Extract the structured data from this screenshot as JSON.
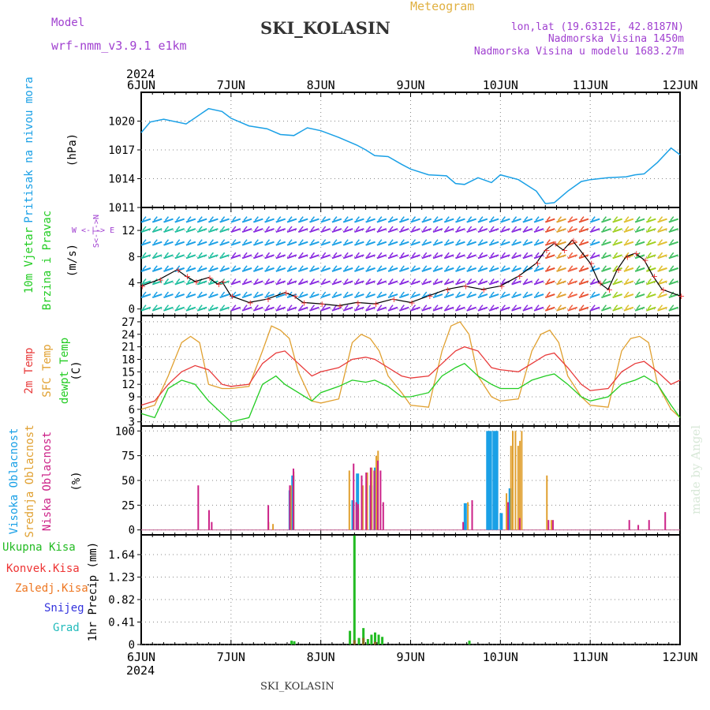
{
  "header": {
    "model_label": "Model",
    "model_name": "wrf-nmm_v3.9.1 e1km",
    "station": "SKI_KOLASIN",
    "product": "Meteogram",
    "lonlat": "lon,lat (19.6312E, 42.8187N)",
    "elevation": "Nadmorska Visina 1450m",
    "model_elevation": "Nadmorska Visina u modelu 1683.27m",
    "year": "2024",
    "footer_station": "SKI_KOLASIN",
    "credit": "made by Angel"
  },
  "colors": {
    "pressure": "#1aa0e6",
    "temp2m": "#e83a3a",
    "sfc": "#e0a030",
    "dew": "#22cc22",
    "wind_speed": "#000000",
    "high_cloud": "#1aa0e6",
    "mid_cloud": "#e0a030",
    "low_cloud": "#cc2288",
    "precip_total": "#22bb22",
    "precip_conv": "#ee3333",
    "precip_frozen": "#ee7722",
    "snow": "#3333dd",
    "hail": "#22bbbb",
    "label_purple": "#a040d0",
    "label_orange": "#e0b040"
  },
  "chart_data": [
    {
      "type": "line",
      "panel": "pressure",
      "ylabel_main": "Pritisak na nivou mora",
      "ylabel_unit": "(hPa)",
      "x_ticks": [
        "6JUN",
        "7JUN",
        "8JUN",
        "9JUN",
        "10JUN",
        "11JUN",
        "12JUN"
      ],
      "ylim": [
        1011,
        1023
      ],
      "yticks": [
        1011,
        1014,
        1017,
        1020
      ],
      "grid": true,
      "series": [
        {
          "x": [
            0,
            0.1,
            0.25,
            0.5,
            0.75,
            0.9,
            1.0,
            1.2,
            1.4,
            1.55,
            1.7,
            1.85,
            2.0,
            2.2,
            2.4,
            2.5,
            2.6,
            2.75,
            2.9,
            3.0,
            3.2,
            3.4,
            3.5,
            3.6,
            3.75,
            3.9,
            4.0,
            4.2,
            4.4,
            4.5,
            4.6,
            4.75,
            4.9,
            5.0,
            5.2,
            5.4,
            5.5,
            5.6,
            5.75,
            5.9,
            6.0
          ],
          "y": [
            1018.8,
            1019.9,
            1020.2,
            1019.7,
            1021.3,
            1021.0,
            1020.3,
            1019.5,
            1019.2,
            1018.6,
            1018.5,
            1019.3,
            1019.0,
            1018.3,
            1017.5,
            1017.0,
            1016.4,
            1016.3,
            1015.5,
            1015.0,
            1014.4,
            1014.3,
            1013.5,
            1013.4,
            1014.1,
            1013.6,
            1014.4,
            1013.9,
            1012.7,
            1011.4,
            1011.5,
            1012.7,
            1013.7,
            1013.9,
            1014.1,
            1014.2,
            1014.4,
            1014.5,
            1015.7,
            1017.2,
            1016.5
          ]
        }
      ]
    },
    {
      "type": "line",
      "panel": "wind",
      "ylabel_main": "10m Vjetar",
      "ylabel_sub": "Brzina i Pravac",
      "ylabel_unit": "(m/s)",
      "direction_legend": "W <-|-> E",
      "direction_legend_ns": "S<-|->N",
      "ylim": [
        -1,
        15.5
      ],
      "yticks": [
        0,
        4,
        8,
        12
      ],
      "grid": true,
      "series": [
        {
          "name": "wind speed",
          "x": [
            0,
            0.2,
            0.4,
            0.5,
            0.6,
            0.75,
            0.85,
            0.9,
            1.0,
            1.2,
            1.4,
            1.6,
            1.7,
            1.8,
            2.0,
            2.2,
            2.4,
            2.6,
            2.8,
            3.0,
            3.2,
            3.4,
            3.6,
            3.8,
            4.0,
            4.2,
            4.4,
            4.5,
            4.6,
            4.7,
            4.8,
            5.0,
            5.1,
            5.2,
            5.3,
            5.4,
            5.5,
            5.6,
            5.7,
            5.8,
            6.0
          ],
          "y": [
            3.5,
            4.5,
            6.0,
            5.0,
            4.2,
            4.8,
            3.8,
            4.2,
            2.0,
            1.0,
            1.5,
            2.5,
            2.0,
            1.0,
            0.8,
            0.5,
            1.0,
            0.8,
            1.5,
            1.0,
            2.0,
            3.0,
            3.5,
            3.0,
            3.5,
            5.0,
            7.0,
            9.0,
            10.0,
            9.0,
            10.5,
            7.0,
            4.0,
            3.0,
            6.0,
            8.0,
            8.5,
            7.5,
            5.0,
            3.0,
            2.0
          ]
        }
      ],
      "barb_bands_y": [
        0,
        2,
        4,
        6,
        8,
        10,
        12,
        13.5
      ]
    },
    {
      "type": "line",
      "panel": "temperature",
      "ylabel_lines": [
        "2m Temp",
        "SFC Temp",
        "dewpt Temp"
      ],
      "ylabel_unit": "(C)",
      "ylim": [
        2,
        28.5
      ],
      "yticks": [
        3,
        6,
        9,
        12,
        15,
        18,
        21,
        24,
        27
      ],
      "grid": true,
      "series": [
        {
          "name": "2m Temp",
          "x": [
            0,
            0.15,
            0.3,
            0.45,
            0.6,
            0.75,
            0.9,
            1.0,
            1.2,
            1.35,
            1.5,
            1.6,
            1.75,
            1.9,
            2.0,
            2.2,
            2.35,
            2.5,
            2.6,
            2.75,
            2.9,
            3.0,
            3.2,
            3.35,
            3.5,
            3.6,
            3.75,
            3.9,
            4.0,
            4.2,
            4.35,
            4.5,
            4.6,
            4.75,
            4.9,
            5.0,
            5.2,
            5.35,
            5.5,
            5.6,
            5.75,
            5.9,
            6.0
          ],
          "y": [
            7.0,
            8.0,
            12.0,
            15.0,
            16.5,
            15.5,
            12.0,
            11.5,
            12.0,
            17.0,
            19.5,
            20.0,
            17.0,
            14.0,
            15.0,
            16.0,
            18.0,
            18.5,
            18.0,
            16.0,
            14.0,
            13.5,
            14.0,
            17.0,
            20.0,
            21.0,
            20.0,
            16.0,
            15.5,
            15.0,
            17.0,
            19.0,
            19.5,
            16.0,
            12.0,
            10.5,
            11.0,
            15.0,
            17.0,
            17.5,
            15.0,
            12.0,
            13.0
          ]
        },
        {
          "name": "SFC Temp",
          "x": [
            0,
            0.15,
            0.3,
            0.45,
            0.55,
            0.65,
            0.75,
            0.9,
            1.0,
            1.2,
            1.35,
            1.45,
            1.55,
            1.65,
            1.75,
            1.9,
            2.0,
            2.2,
            2.35,
            2.45,
            2.55,
            2.65,
            2.75,
            2.9,
            3.0,
            3.2,
            3.35,
            3.45,
            3.55,
            3.65,
            3.75,
            3.9,
            4.0,
            4.2,
            4.35,
            4.45,
            4.55,
            4.65,
            4.75,
            4.9,
            5.0,
            5.2,
            5.35,
            5.45,
            5.55,
            5.65,
            5.75,
            5.9,
            6.0
          ],
          "y": [
            6.0,
            7.0,
            14.0,
            22.0,
            23.5,
            22.0,
            12.0,
            11.0,
            11.0,
            11.5,
            20.0,
            26.0,
            25.0,
            23.0,
            15.0,
            8.0,
            7.5,
            8.5,
            22.0,
            24.0,
            23.0,
            20.0,
            14.0,
            10.0,
            7.0,
            6.5,
            20.0,
            26.0,
            27.0,
            24.0,
            14.0,
            9.0,
            8.0,
            8.5,
            20.0,
            24.0,
            25.0,
            22.0,
            14.0,
            9.0,
            7.0,
            6.5,
            20.0,
            23.0,
            23.5,
            22.0,
            12.0,
            6.0,
            4.0
          ]
        },
        {
          "name": "dewpt Temp",
          "x": [
            0,
            0.15,
            0.3,
            0.45,
            0.6,
            0.75,
            0.9,
            1.0,
            1.2,
            1.35,
            1.5,
            1.6,
            1.75,
            1.9,
            2.0,
            2.2,
            2.35,
            2.5,
            2.6,
            2.75,
            2.9,
            3.0,
            3.2,
            3.35,
            3.5,
            3.6,
            3.75,
            3.9,
            4.0,
            4.2,
            4.35,
            4.5,
            4.6,
            4.75,
            4.9,
            5.0,
            5.2,
            5.35,
            5.5,
            5.6,
            5.75,
            5.9,
            6.0
          ],
          "y": [
            5.0,
            4.0,
            11.0,
            13.0,
            12.0,
            8.0,
            5.0,
            3.0,
            4.0,
            12.0,
            14.0,
            12.0,
            10.0,
            8.0,
            10.0,
            11.5,
            13.0,
            12.5,
            13.0,
            11.5,
            9.0,
            9.0,
            10.0,
            14.0,
            16.0,
            17.0,
            14.0,
            12.0,
            11.0,
            11.0,
            13.0,
            14.0,
            14.5,
            12.0,
            9.0,
            8.0,
            9.0,
            12.0,
            13.0,
            14.0,
            12.0,
            7.0,
            4.0
          ]
        }
      ]
    },
    {
      "type": "bar",
      "panel": "cloud",
      "ylabel_lines": [
        "Visoka Oblacnost",
        "Srednja Oblacnost",
        "Niska Oblacnost"
      ],
      "ylabel_unit": "(%)",
      "ylim": [
        -5,
        105
      ],
      "yticks": [
        0,
        25,
        50,
        75,
        100
      ],
      "grid": true,
      "series": [
        {
          "name": "Visoka Oblacnost",
          "x": [
            1.65,
            1.68,
            2.35,
            2.4,
            2.55,
            2.6,
            3.6,
            3.85,
            3.88,
            3.92,
            3.95,
            4.0,
            4.1
          ],
          "values": [
            40,
            55,
            30,
            57,
            45,
            63,
            27,
            100,
            100,
            100,
            100,
            17,
            42
          ]
        },
        {
          "name": "Srednja Oblacnost",
          "x": [
            1.4,
            1.45,
            1.65,
            1.68,
            2.3,
            2.35,
            2.4,
            2.45,
            2.5,
            2.55,
            2.6,
            2.62,
            3.62,
            4.05,
            4.1,
            4.12,
            4.15,
            4.18,
            4.2,
            4.22,
            4.5,
            4.55
          ],
          "values": [
            8,
            6,
            45,
            59,
            60,
            20,
            22,
            45,
            58,
            63,
            75,
            80,
            28,
            37,
            85,
            100,
            100,
            85,
            90,
            100,
            55,
            10
          ],
          "dim": true
        },
        {
          "name": "Niska Oblacnost",
          "x": [
            0.6,
            0.72,
            0.75,
            1.38,
            1.62,
            1.66,
            2.33,
            2.36,
            2.38,
            2.42,
            2.47,
            2.52,
            2.56,
            2.6,
            2.63,
            2.66,
            3.55,
            3.65,
            4.05,
            4.18,
            4.5,
            4.55,
            5.4,
            5.5,
            5.62,
            5.8
          ],
          "values": [
            45,
            20,
            8,
            25,
            45,
            62,
            67,
            28,
            26,
            55,
            58,
            63,
            60,
            70,
            60,
            28,
            8,
            30,
            28,
            12,
            10,
            10,
            10,
            5,
            10,
            18
          ],
          "dim": true
        }
      ]
    },
    {
      "type": "bar",
      "panel": "precip",
      "ylabel_lines": [
        "Ukupna Kisa",
        "Konvek.Kisa",
        "Zaledj.Kisa",
        "Snijeg",
        "Grad"
      ],
      "ylabel_unit": "1hr Precip (mm)",
      "ylim": [
        0,
        2.0
      ],
      "yticks": [
        0,
        0.41,
        0.82,
        1.23,
        1.64
      ],
      "grid": true,
      "series": [
        {
          "name": "Ukupna Kisa",
          "x": [
            1.67,
            1.7,
            2.32,
            2.37,
            2.42,
            2.47,
            2.52,
            2.56,
            2.6,
            2.64,
            2.68,
            3.65
          ],
          "values": [
            0.07,
            0.06,
            0.25,
            1.99,
            0.12,
            0.3,
            0.1,
            0.18,
            0.22,
            0.18,
            0.14,
            0.07
          ]
        },
        {
          "name": "Konvek.Kisa",
          "x": [
            2.37,
            2.47,
            2.6
          ],
          "values": [
            0.08,
            0.12,
            0.05
          ]
        }
      ]
    }
  ]
}
